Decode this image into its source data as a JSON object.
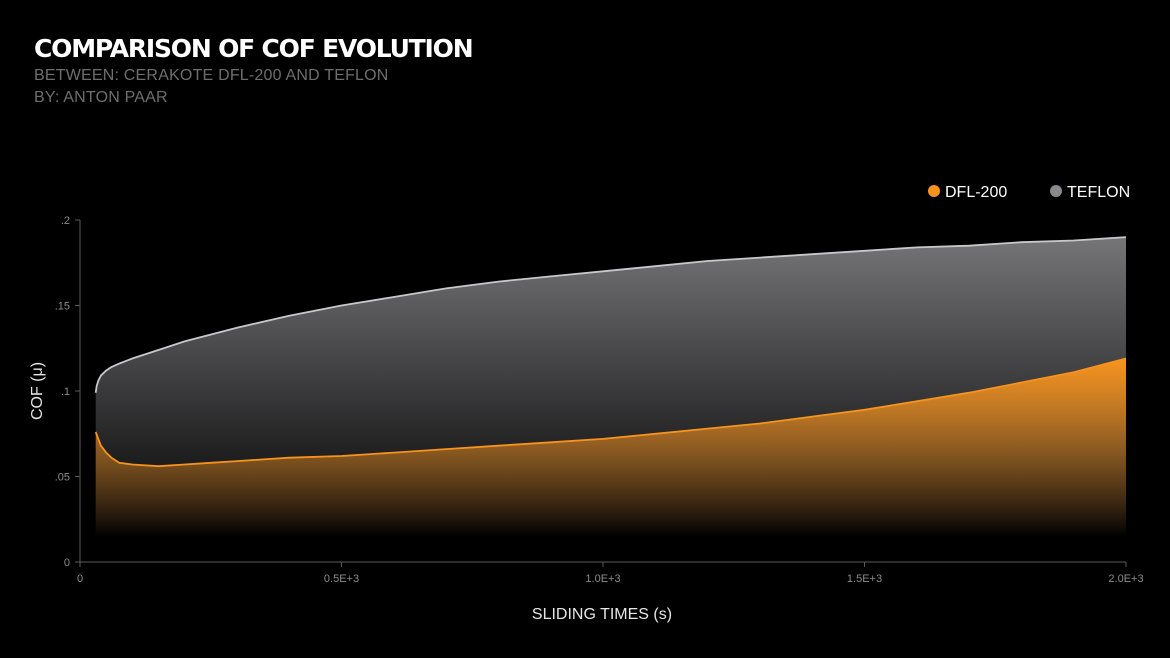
{
  "header": {
    "title": "COMPARISON OF COF EVOLUTION",
    "subtitle_line1": "BETWEEN: CERAKOTE DFL-200 AND TEFLON",
    "subtitle_line2": "BY: ANTON PAAR"
  },
  "chart_data": {
    "type": "area",
    "xlabel": "SLIDING TIMES (s)",
    "ylabel": "COF (μ)",
    "xlim": [
      0,
      2000
    ],
    "ylim": [
      0,
      0.2
    ],
    "x_ticks": [
      {
        "value": 0,
        "label": "0"
      },
      {
        "value": 500,
        "label": "0.5E+3"
      },
      {
        "value": 1000,
        "label": "1.0E+3"
      },
      {
        "value": 1500,
        "label": "1.5E+3"
      },
      {
        "value": 2000,
        "label": "2.0E+3"
      }
    ],
    "y_ticks": [
      {
        "value": 0,
        "label": "0"
      },
      {
        "value": 0.05,
        "label": ".05"
      },
      {
        "value": 0.1,
        "label": ".1"
      },
      {
        "value": 0.15,
        "label": ".15"
      },
      {
        "value": 0.2,
        "label": ".2"
      }
    ],
    "grid": false,
    "legend_position": "top-right",
    "series": [
      {
        "name": "DFL-200",
        "color": "#f7931e",
        "x": [
          30,
          35,
          40,
          50,
          60,
          75,
          100,
          150,
          200,
          250,
          300,
          400,
          500,
          600,
          700,
          800,
          900,
          1000,
          1100,
          1200,
          1300,
          1400,
          1500,
          1600,
          1700,
          1800,
          1900,
          2000
        ],
        "y": [
          0.076,
          0.072,
          0.068,
          0.064,
          0.061,
          0.058,
          0.057,
          0.056,
          0.057,
          0.058,
          0.059,
          0.061,
          0.062,
          0.064,
          0.066,
          0.068,
          0.07,
          0.072,
          0.075,
          0.078,
          0.081,
          0.085,
          0.089,
          0.094,
          0.099,
          0.105,
          0.111,
          0.119
        ]
      },
      {
        "name": "TEFLON",
        "color": "#8a8a8e",
        "x": [
          30,
          32,
          35,
          40,
          50,
          60,
          75,
          100,
          150,
          200,
          300,
          400,
          500,
          600,
          700,
          800,
          900,
          1000,
          1100,
          1200,
          1300,
          1400,
          1500,
          1600,
          1700,
          1800,
          1900,
          2000
        ],
        "y": [
          0.099,
          0.103,
          0.106,
          0.109,
          0.112,
          0.114,
          0.116,
          0.119,
          0.124,
          0.129,
          0.137,
          0.144,
          0.15,
          0.155,
          0.16,
          0.164,
          0.167,
          0.17,
          0.173,
          0.176,
          0.178,
          0.18,
          0.182,
          0.184,
          0.185,
          0.187,
          0.188,
          0.19
        ]
      }
    ]
  }
}
